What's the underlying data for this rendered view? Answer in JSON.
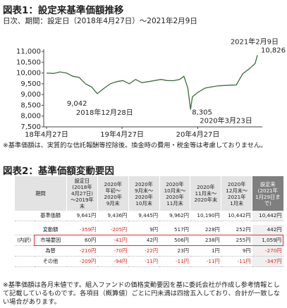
{
  "figure1": {
    "title": "図表1：設定来基準価額推移",
    "subtitle": "日次、期間：設定日（2018年4月27日）～2021年2月9日",
    "chart": {
      "type": "line",
      "color": "#3b6b3e",
      "x": [
        "2018-04-27",
        "2018-06-01",
        "2018-07-01",
        "2018-08-01",
        "2018-09-01",
        "2018-10-01",
        "2018-11-01",
        "2018-12-01",
        "2018-12-28",
        "2019-01-31",
        "2019-03-01",
        "2019-04-01",
        "2019-05-01",
        "2019-06-01",
        "2019-07-01",
        "2019-08-01",
        "2019-09-01",
        "2019-10-01",
        "2019-11-01",
        "2019-12-01",
        "2019-12-31",
        "2020-01-31",
        "2020-02-20",
        "2020-03-10",
        "2020-03-23",
        "2020-04-01",
        "2020-04-27",
        "2020-06-01",
        "2020-07-01",
        "2020-08-01",
        "2020-09-30",
        "2020-10-30",
        "2020-11-30",
        "2020-12-31",
        "2021-01-29",
        "2021-02-09"
      ],
      "values": [
        10000,
        9980,
        10050,
        10000,
        9850,
        9800,
        9500,
        9350,
        9042,
        9300,
        9500,
        9600,
        9650,
        9500,
        9700,
        9550,
        9600,
        9650,
        9700,
        9650,
        9641,
        9700,
        9850,
        9300,
        8305,
        8900,
        9100,
        9300,
        9350,
        9400,
        9436,
        9445,
        9962,
        10190,
        10442,
        10826
      ],
      "xlim": [
        "2018-04-27",
        "2021-02-09"
      ],
      "ylim": [
        7500,
        11000
      ],
      "yticks": [
        {
          "value": 7500,
          "label": "7,500"
        },
        {
          "value": 8000,
          "label": "8,000"
        },
        {
          "value": 8500,
          "label": "8,500"
        },
        {
          "value": 9000,
          "label": "9,000"
        },
        {
          "value": 9500,
          "label": "9,500"
        },
        {
          "value": 10000,
          "label": "10,000"
        },
        {
          "value": 10500,
          "label": "10,500"
        },
        {
          "value": 11000,
          "label": "11,000"
        }
      ],
      "xticks": [
        {
          "value": "2018-04-27",
          "label": "18年4月27日"
        },
        {
          "value": "2019-04-27",
          "label": "19年4月27日"
        },
        {
          "value": "2020-04-27",
          "label": "20年4月27日"
        }
      ],
      "callouts": [
        {
          "x": "2021-02-09",
          "value": 10826,
          "value_label": "10,826",
          "date_label": "2021年2月9日"
        },
        {
          "x": "2018-12-28",
          "value": 9042,
          "value_label": "9,042",
          "date_label": "2018年12月28日"
        },
        {
          "x": "2020-03-23",
          "value": 8305,
          "value_label": "8,305",
          "date_label": "2020年3月23日"
        }
      ]
    },
    "note": "※基準価額は、実質的な信託報酬等控除後。換金時の費用・税金等は考慮しておりません。"
  },
  "figure2": {
    "title": "図表2：基準価額変動要因",
    "table": {
      "corner": "期間",
      "columns": [
        [
          "設定日",
          "(2018年",
          "4月27日)",
          "～2019年",
          "末"
        ],
        [
          "2020年",
          "年初～",
          "2020年",
          "9月末"
        ],
        [
          "2020年",
          "9月末～",
          "2020年",
          "10月末"
        ],
        [
          "2020年",
          "10月末～",
          "2020年",
          "11月末"
        ],
        [
          "2020年",
          "11月末～",
          "2020年末"
        ],
        [
          "2020年",
          "12月末～",
          "2021年",
          "1月末"
        ],
        [
          "設定来",
          "(2021年",
          "1月29日ま",
          "で)"
        ]
      ],
      "group_label": "(内訳)",
      "rows": [
        {
          "label": "基準価額",
          "cells": [
            "9,641円",
            "9,436円",
            "9,445円",
            "9,962円",
            "10,190円",
            "10,442円",
            "10,442円"
          ]
        },
        {
          "label": "変動額",
          "cells": [
            "-359円",
            "-205円",
            "9円",
            "517円",
            "228円",
            "252円",
            "442円"
          ]
        },
        {
          "label": "市場要因",
          "cells": [
            "60円",
            "-41円",
            "42円",
            "506円",
            "238円",
            "255円",
            "1,059円"
          ]
        },
        {
          "label": "為替",
          "cells": [
            "-210円",
            "-70円",
            "-22円",
            "23円",
            "1円",
            "9円",
            "-270円"
          ]
        },
        {
          "label": "その他",
          "cells": [
            "-209円",
            "-94円",
            "-11円",
            "-11円",
            "-11円",
            "-11円",
            "-347円"
          ]
        }
      ]
    },
    "note": "※基準価額は各月末値です。組入ファンドの価格変動要因を基に委託会社が作成し参考情報として記載しているものです。各項目（概算値）ごとに円未満は四捨五入しており、合計が一致しない場合があります。"
  }
}
